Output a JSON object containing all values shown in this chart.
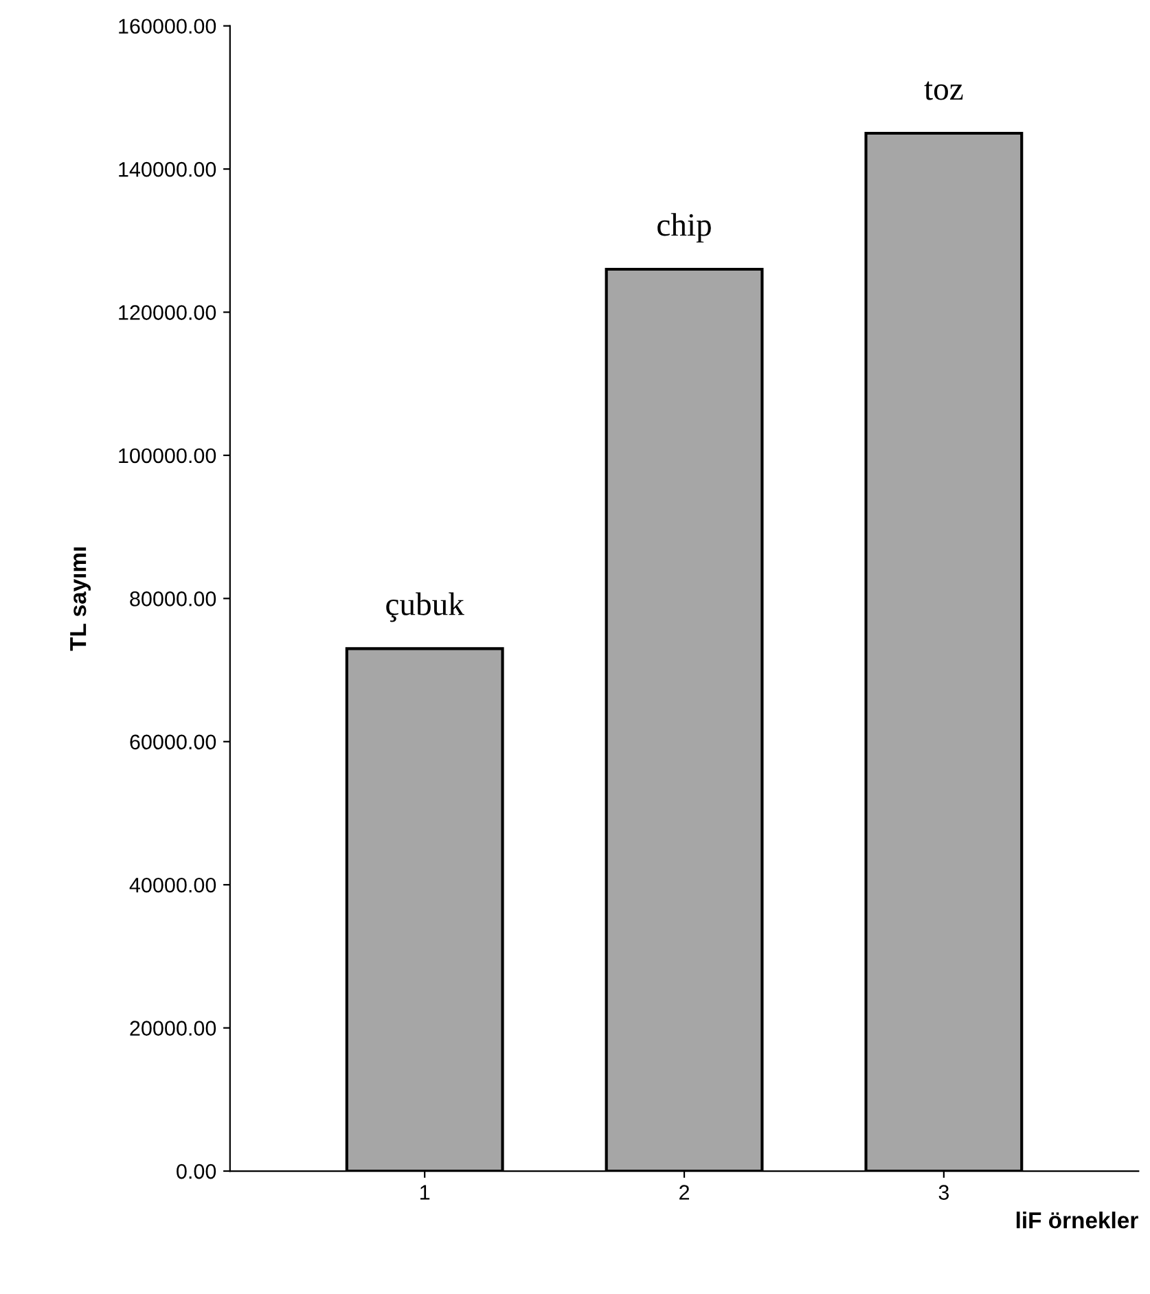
{
  "chart_data": {
    "type": "bar",
    "xlabel": "liF örnekler",
    "ylabel": "TL sayımı",
    "categories": [
      "1",
      "2",
      "3"
    ],
    "values": [
      73000,
      126000,
      145000
    ],
    "color": "#a6a6a6",
    "ylim": [
      0,
      160000
    ],
    "yticks": [
      {
        "value": 0,
        "label": "0.00"
      },
      {
        "value": 20000,
        "label": "20000.00"
      },
      {
        "value": 40000,
        "label": "40000.00"
      },
      {
        "value": 60000,
        "label": "60000.00"
      },
      {
        "value": 80000,
        "label": "80000.00"
      },
      {
        "value": 100000,
        "label": "100000.00"
      },
      {
        "value": 120000,
        "label": "120000.00"
      },
      {
        "value": 140000,
        "label": "140000.00"
      },
      {
        "value": 160000,
        "label": "160000.00"
      }
    ],
    "annotations": [
      {
        "text": "çubuk",
        "x": "1",
        "y": 73000
      },
      {
        "text": "chip",
        "x": "2",
        "y": 126000
      },
      {
        "text": "toz",
        "x": "3",
        "y": 145000
      }
    ],
    "grid": false,
    "legend": false
  }
}
